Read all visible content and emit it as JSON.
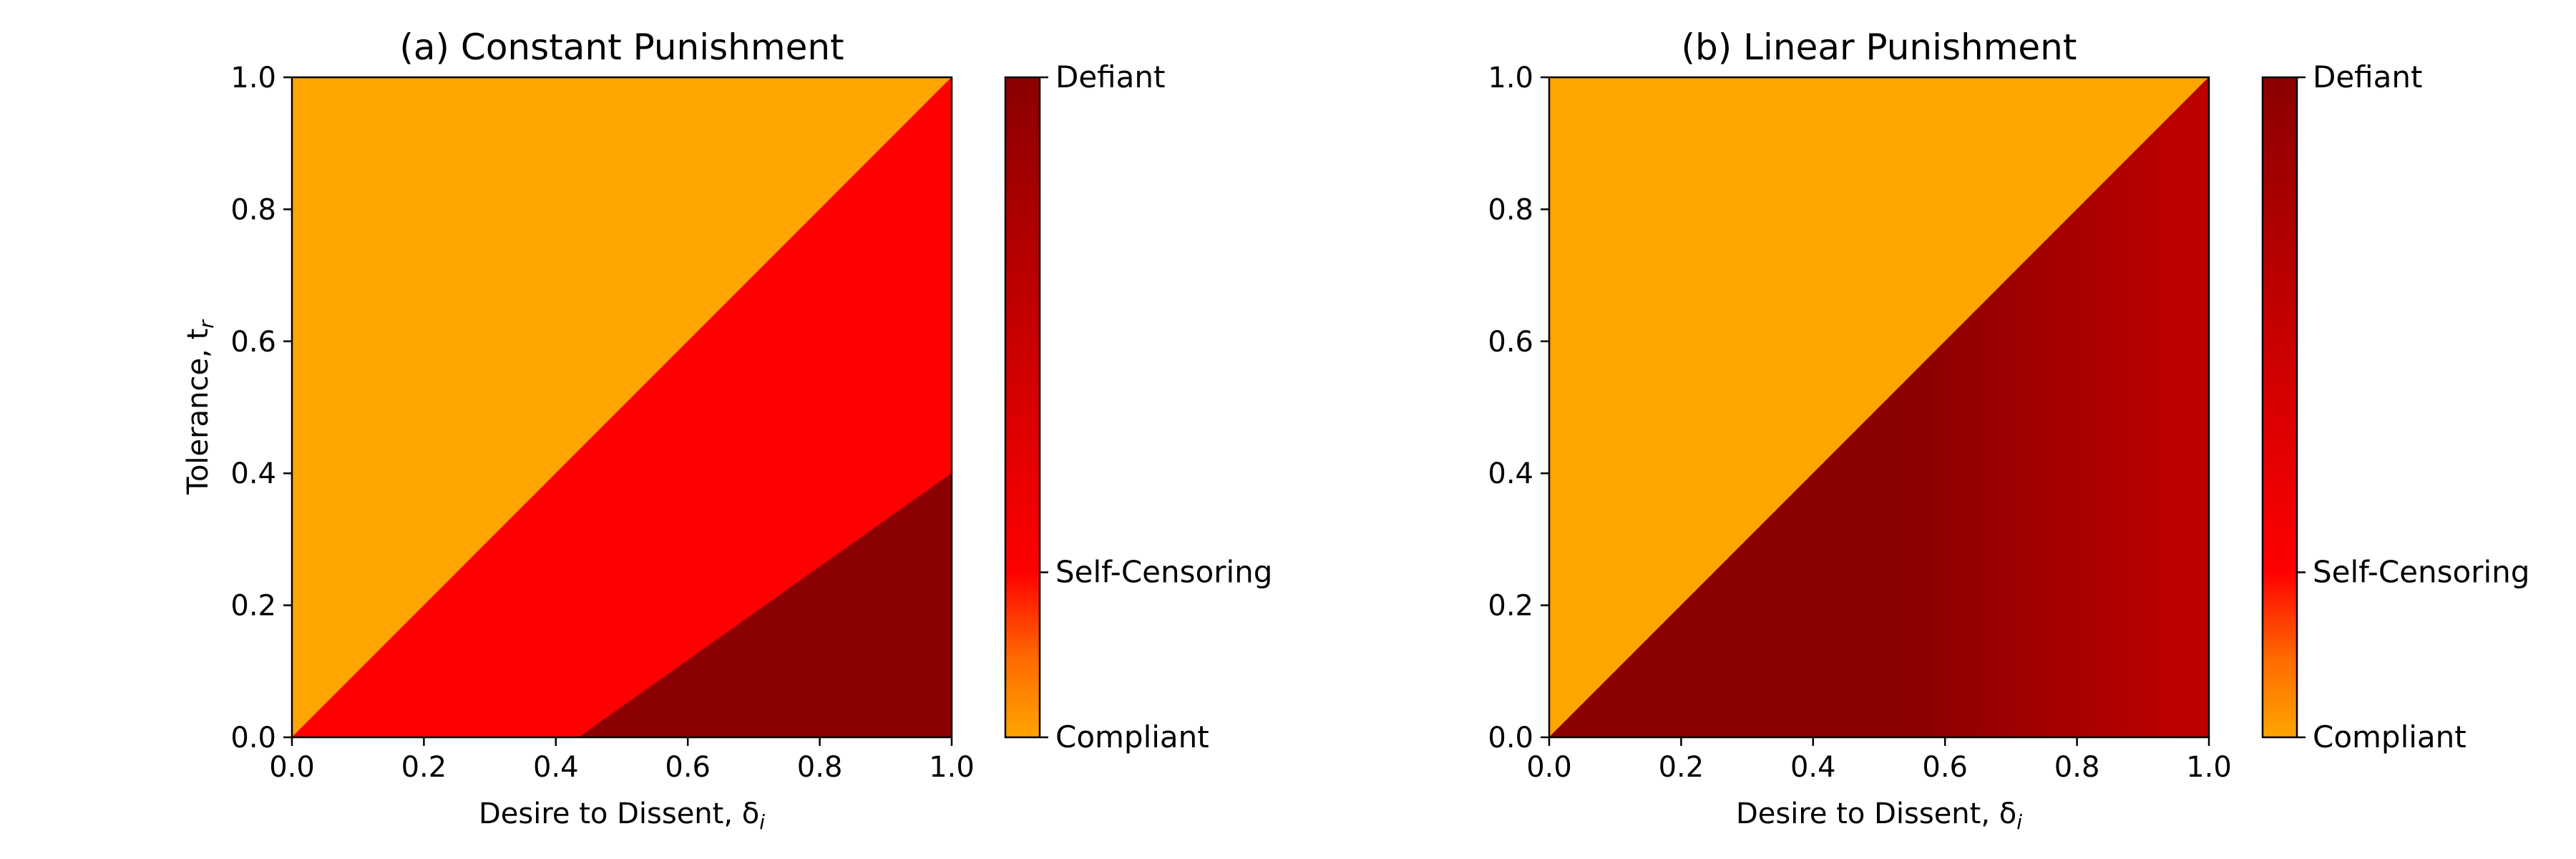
{
  "chart_data": [
    {
      "type": "heatmap",
      "title": "(a) Constant Punishment",
      "xlabel": "Desire to Dissent, δ",
      "xlabel_sub": "i",
      "ylabel": "Tolerance, t",
      "ylabel_sub": "r",
      "xlim": [
        0,
        1
      ],
      "ylim": [
        0,
        1
      ],
      "xticks": [
        "0.0",
        "0.2",
        "0.4",
        "0.6",
        "0.8",
        "1.0"
      ],
      "yticks": [
        "0.0",
        "0.2",
        "0.4",
        "0.6",
        "0.8",
        "1.0"
      ],
      "regions": [
        {
          "state": "Compliant",
          "color": "#FFA500",
          "polygon": [
            [
              0,
              0
            ],
            [
              0,
              1
            ],
            [
              1,
              1
            ]
          ]
        },
        {
          "state": "Self-Censoring",
          "color": "#FF0000",
          "polygon": [
            [
              0,
              0
            ],
            [
              1,
              1
            ],
            [
              1,
              0.4
            ],
            [
              0.435,
              0
            ]
          ]
        },
        {
          "state": "Defiant",
          "color": "#8B0000",
          "polygon": [
            [
              0.435,
              0
            ],
            [
              1,
              0.4
            ],
            [
              1,
              0
            ]
          ]
        }
      ],
      "colorbar": {
        "labels": [
          "Defiant",
          "Self-Censoring",
          "Compliant"
        ],
        "positions": [
          1.0,
          0.25,
          0.0
        ],
        "colors": [
          "#FFA500",
          "#FF0000",
          "#8B0000"
        ]
      }
    },
    {
      "type": "heatmap",
      "title": "(b) Linear Punishment",
      "xlabel": "Desire to Dissent, δ",
      "xlabel_sub": "i",
      "ylabel": "",
      "xlim": [
        0,
        1
      ],
      "ylim": [
        0,
        1
      ],
      "xticks": [
        "0.0",
        "0.2",
        "0.4",
        "0.6",
        "0.8",
        "1.0"
      ],
      "yticks": [
        "0.0",
        "0.2",
        "0.4",
        "0.6",
        "0.8",
        "1.0"
      ],
      "regions": [
        {
          "state": "Compliant",
          "color": "#FFA500",
          "polygon": [
            [
              0,
              0
            ],
            [
              0,
              1
            ],
            [
              1,
              1
            ]
          ]
        },
        {
          "state": "Defiant",
          "color": "#8B0000",
          "polygon": [
            [
              0,
              0
            ],
            [
              1,
              1
            ],
            [
              1,
              0
            ]
          ],
          "gradient_to": "#BB0000"
        }
      ],
      "colorbar": {
        "labels": [
          "Defiant",
          "Self-Censoring",
          "Compliant"
        ],
        "positions": [
          1.0,
          0.25,
          0.0
        ],
        "colors": [
          "#FFA500",
          "#FF0000",
          "#8B0000"
        ]
      }
    }
  ]
}
